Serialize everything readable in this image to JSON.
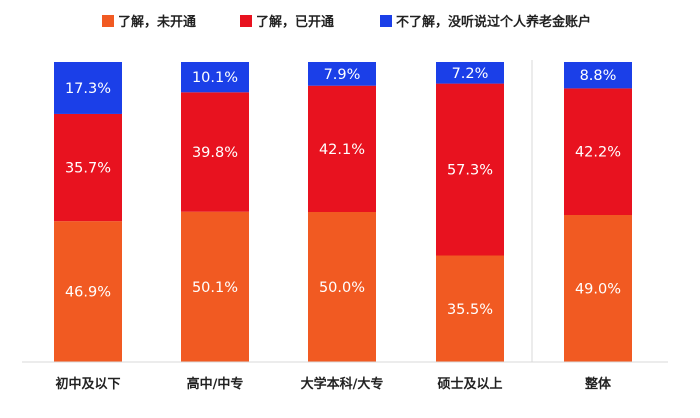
{
  "chart_data": {
    "type": "bar",
    "stacked": true,
    "percent_stacked": true,
    "categories": [
      "初中及以下",
      "高中/中专",
      "大学本科/大专",
      "硕士及以上",
      "整体"
    ],
    "series": [
      {
        "name": "了解，未开通",
        "color": "#F15A22",
        "values": [
          46.9,
          50.1,
          50.0,
          35.5,
          49.0
        ],
        "labels": [
          "46.9%",
          "50.1%",
          "50.0%",
          "35.5%",
          "49.0%"
        ]
      },
      {
        "name": "了解，已开通",
        "color": "#E8121F",
        "values": [
          35.7,
          39.8,
          42.1,
          57.3,
          42.2
        ],
        "labels": [
          "35.7%",
          "39.8%",
          "42.1%",
          "57.3%",
          "42.2%"
        ]
      },
      {
        "name": "不了解，没听说过个人养老金账户",
        "color": "#1B3FE8",
        "values": [
          17.3,
          10.1,
          7.9,
          7.2,
          8.8
        ],
        "labels": [
          "17.3%",
          "10.1%",
          "7.9%",
          "7.2%",
          "8.8%"
        ]
      }
    ],
    "legend_position": "top",
    "grid": false,
    "ylim": [
      0,
      100
    ]
  }
}
